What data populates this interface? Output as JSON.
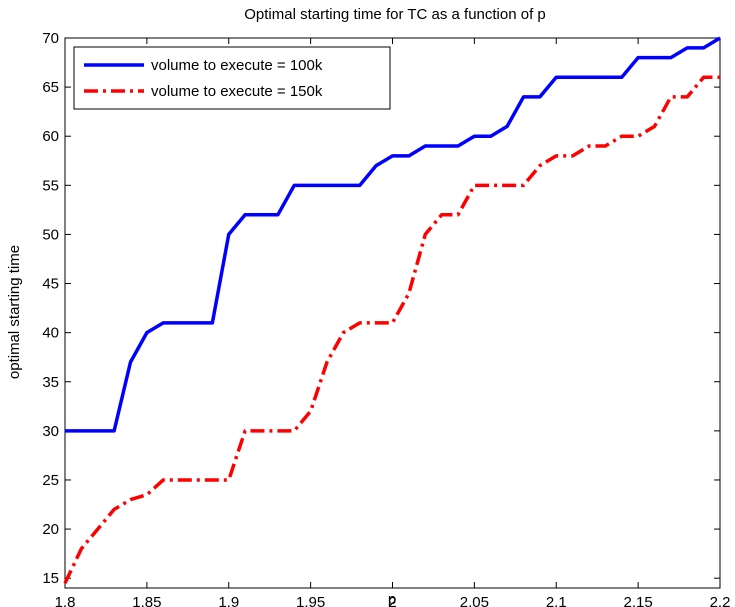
{
  "chart_data": {
    "type": "line",
    "title": "Optimal starting time for TC as a function of p",
    "xlabel": "p",
    "ylabel": "optimal starting time",
    "xlim": [
      1.8,
      2.2
    ],
    "ylim": [
      14,
      70
    ],
    "xticks": [
      "1.8",
      "1.85",
      "1.9",
      "1.95",
      "2",
      "2.05",
      "2.1",
      "2.15",
      "2.2"
    ],
    "yticks": [
      "15",
      "20",
      "25",
      "30",
      "35",
      "40",
      "45",
      "50",
      "55",
      "60",
      "65",
      "70"
    ],
    "grid": false,
    "legend_position": "top-left",
    "x": [
      1.8,
      1.81,
      1.82,
      1.83,
      1.84,
      1.85,
      1.86,
      1.87,
      1.88,
      1.89,
      1.9,
      1.91,
      1.92,
      1.93,
      1.94,
      1.95,
      1.96,
      1.97,
      1.98,
      1.99,
      2.0,
      2.01,
      2.02,
      2.03,
      2.04,
      2.05,
      2.06,
      2.07,
      2.08,
      2.09,
      2.1,
      2.11,
      2.12,
      2.13,
      2.14,
      2.15,
      2.16,
      2.17,
      2.18,
      2.19,
      2.2
    ],
    "series": [
      {
        "name": "volume to execute = 100k",
        "color": "#0000ff",
        "style": "solid",
        "values": [
          30,
          30,
          30,
          30,
          37,
          40,
          41,
          41,
          41,
          41,
          50,
          52,
          52,
          52,
          55,
          55,
          55,
          55,
          55,
          57,
          58,
          58,
          59,
          59,
          59,
          60,
          60,
          61,
          64,
          64,
          66,
          66,
          66,
          66,
          66,
          68,
          68,
          68,
          69,
          69,
          70
        ]
      },
      {
        "name": "volume to execute = 150k",
        "color": "#ff0000",
        "style": "dashdot",
        "values": [
          14.5,
          18,
          20,
          22,
          23,
          23.5,
          25,
          25,
          25,
          25,
          25,
          30,
          30,
          30,
          30,
          32,
          37,
          40,
          41,
          41,
          41,
          44,
          50,
          52,
          52,
          55,
          55,
          55,
          55,
          57,
          58,
          58,
          59,
          59,
          60,
          60,
          61,
          64,
          64,
          66,
          66
        ]
      }
    ]
  }
}
